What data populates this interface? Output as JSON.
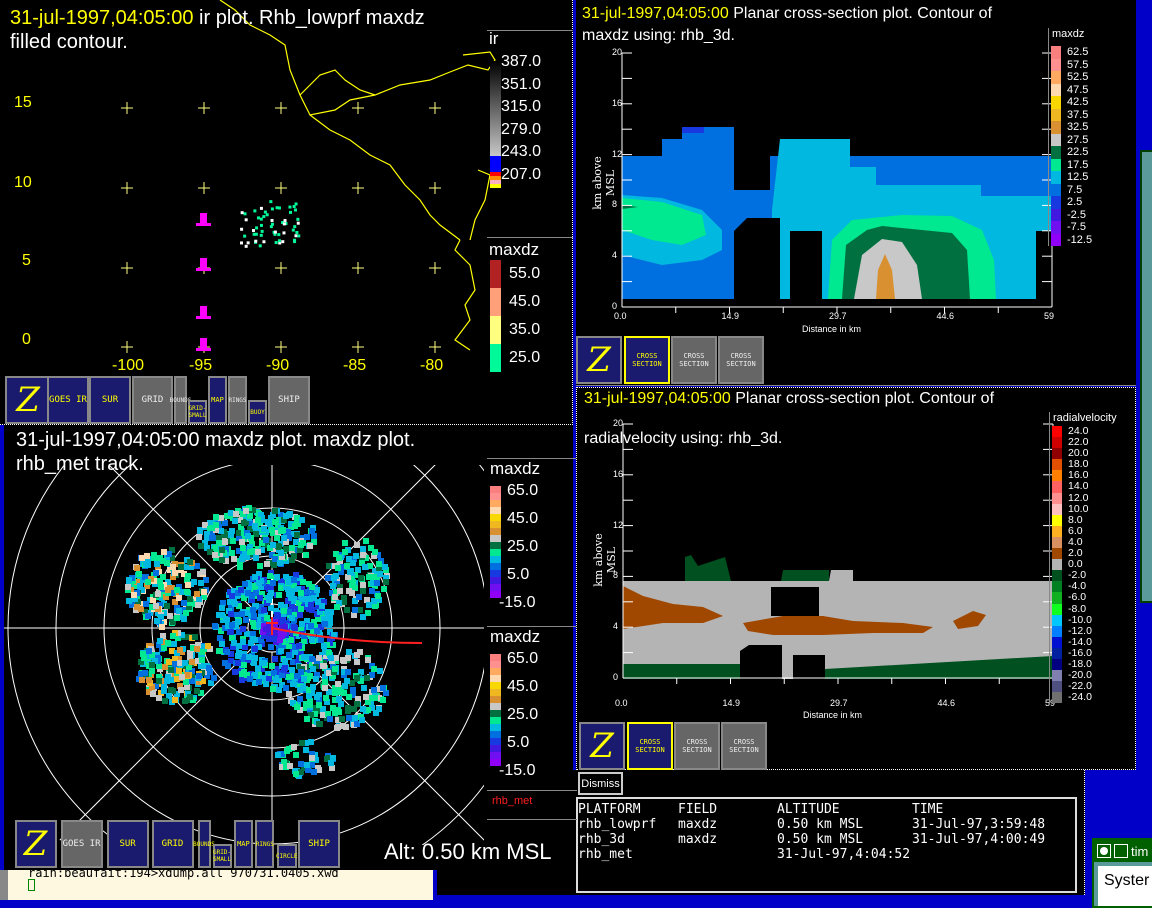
{
  "ir_window": {
    "timestamp": "31-jul-1997,04:05:00",
    "title_rest": " ir plot.  Rhb_lowprf maxdz",
    "title_line2": "filled contour.",
    "y_labels": [
      "15",
      "10",
      "5",
      "0"
    ],
    "x_labels": [
      "-100",
      "-95",
      "-90",
      "-85",
      "-80"
    ],
    "ir_colorbar": {
      "name": "ir",
      "labels": [
        "387.0",
        "351.0",
        "315.0",
        "279.0",
        "243.0",
        "207.0"
      ]
    },
    "maxdz_colorbar": {
      "name": "maxdz",
      "labels": [
        "55.0",
        "45.0",
        "35.0",
        "25.0"
      ],
      "colors": [
        "#b22222",
        "#ffa07a",
        "#ffff80",
        "#00fa9a"
      ]
    },
    "toolbar": [
      "Z",
      "GOES IR",
      "SUR",
      "GRID",
      "BOUNDS",
      "GRID-SMALL",
      "MAP",
      "RINGS",
      "BUOY",
      "SHIP"
    ]
  },
  "radar_window": {
    "timestamp": "31-jul-1997,04:05:00",
    "title_rest": " maxdz plot.  maxdz plot.",
    "title_line2": "rhb_met track.",
    "colorbars": [
      {
        "name": "maxdz",
        "labels": [
          "65.0",
          "45.0",
          "25.0",
          "5.0",
          "-15.0"
        ]
      },
      {
        "name": "maxdz",
        "labels": [
          "65.0",
          "45.0",
          "25.0",
          "5.0",
          "-15.0"
        ]
      }
    ],
    "track_label": "rhb_met",
    "altitude": "Alt: 0.50 km MSL",
    "toolbar": [
      "Z",
      "GOES IR",
      "SUR",
      "GRID",
      "BOUNDS",
      "GRID-SMALL",
      "MAP",
      "RINGS",
      "CIRCLE",
      "SHIP"
    ]
  },
  "maxdz_xsec": {
    "timestamp": "31-jul-1997,04:05:00",
    "title_rest": "  Planar cross-section plot.  Contour of",
    "title_line2": "maxdz using: rhb_3d.",
    "ylabel": "km above MSL",
    "xlabel": "Distance in km",
    "y_ticks": [
      "0",
      "4",
      "8",
      "12",
      "16",
      "20"
    ],
    "x_ticks": [
      "0.0",
      "14.9",
      "29.7",
      "44.6",
      "59"
    ],
    "colorbar": {
      "name": "maxdz",
      "labels": [
        "62.5",
        "57.5",
        "52.5",
        "47.5",
        "42.5",
        "37.5",
        "32.5",
        "27.5",
        "22.5",
        "17.5",
        "12.5",
        "7.5",
        "2.5",
        "-2.5",
        "-7.5",
        "-12.5"
      ],
      "colors": [
        "#fa8080",
        "#ff9090",
        "#ffaa60",
        "#ffdab0",
        "#f8d800",
        "#f0b820",
        "#d89030",
        "#c8c8c8",
        "#007040",
        "#00e890",
        "#00b8e0",
        "#0070e0",
        "#1838e0",
        "#4018e0",
        "#7010f0",
        "#9000f8"
      ]
    },
    "toolbar": [
      "Z",
      "CROSS SECTION",
      "CROSS SECTION",
      "CROSS SECTION"
    ]
  },
  "velocity_xsec": {
    "timestamp": "31-jul-1997,04:05:00",
    "title_rest": "  Planar cross-section plot.  Contour of",
    "title_line2": "radialvelocity using: rhb_3d.",
    "ylabel": "km above MSL",
    "xlabel": "Distance in km",
    "y_ticks": [
      "0",
      "4",
      "8",
      "12",
      "16",
      "20"
    ],
    "x_ticks": [
      "0.0",
      "14.9",
      "29.7",
      "44.6",
      "59"
    ],
    "colorbar": {
      "name": "radialvelocity",
      "labels": [
        "24.0",
        "22.0",
        "20.0",
        "18.0",
        "16.0",
        "14.0",
        "12.0",
        "10.0",
        "8.0",
        "6.0",
        "4.0",
        "2.0",
        "0.0",
        "-2.0",
        "-4.0",
        "-6.0",
        "-8.0",
        "-10.0",
        "-12.0",
        "-14.0",
        "-16.0",
        "-18.0",
        "-20.0",
        "-22.0",
        "-24.0"
      ],
      "colors": [
        "#ff0000",
        "#d00000",
        "#900000",
        "#e05000",
        "#ff8000",
        "#ff6060",
        "#ff9090",
        "#ffc0c0",
        "#ffff00",
        "#ffb020",
        "#d89060",
        "#a04800",
        "#b4b4b4",
        "#005020",
        "#008020",
        "#10b020",
        "#10ff20",
        "#00c8ff",
        "#0080ff",
        "#0010d0",
        "#0020a0",
        "#000080",
        "#8080b0",
        "#505080",
        "#707070"
      ]
    },
    "toolbar": [
      "Z",
      "CROSS SECTION",
      "CROSS SECTION",
      "CROSS SECTION"
    ]
  },
  "dismiss_label": "Dismiss",
  "info_table": {
    "headers": [
      "PLATFORM",
      "FIELD",
      "ALTITUDE",
      "TIME"
    ],
    "rows": [
      [
        "rhb_lowprf",
        "maxdz",
        "0.50 km MSL",
        "31-Jul-97,3:59:48"
      ],
      [
        "rhb_3d",
        "maxdz",
        "0.50 km MSL",
        "31-Jul-97,4:00:49"
      ],
      [
        "rhb_met",
        "",
        "31-Jul-97,4:04:52",
        ""
      ]
    ]
  },
  "terminal": {
    "line1": "rain:beaufait:194>xdump.all 970731.0405.xwd"
  },
  "side_window": {
    "title": "tim",
    "content": "Syster"
  }
}
